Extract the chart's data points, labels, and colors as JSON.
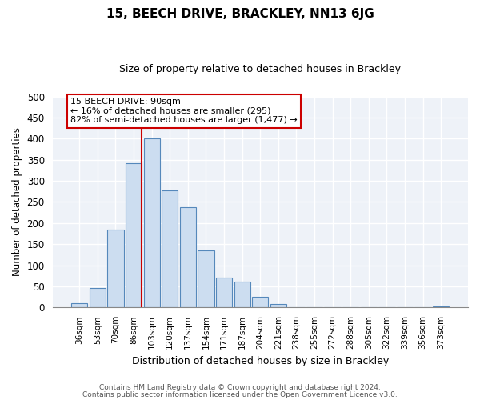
{
  "title": "15, BEECH DRIVE, BRACKLEY, NN13 6JG",
  "subtitle": "Size of property relative to detached houses in Brackley",
  "xlabel": "Distribution of detached houses by size in Brackley",
  "ylabel": "Number of detached properties",
  "bar_labels": [
    "36sqm",
    "53sqm",
    "70sqm",
    "86sqm",
    "103sqm",
    "120sqm",
    "137sqm",
    "154sqm",
    "171sqm",
    "187sqm",
    "204sqm",
    "221sqm",
    "238sqm",
    "255sqm",
    "272sqm",
    "288sqm",
    "305sqm",
    "322sqm",
    "339sqm",
    "356sqm",
    "373sqm"
  ],
  "bar_values": [
    10,
    47,
    185,
    342,
    400,
    278,
    238,
    135,
    70,
    62,
    26,
    8,
    0,
    0,
    0,
    0,
    0,
    0,
    0,
    0,
    2
  ],
  "bar_color": "#ccddf0",
  "bar_edge_color": "#5588bb",
  "property_line_color": "#cc0000",
  "annotation_text_line1": "15 BEECH DRIVE: 90sqm",
  "annotation_text_line2": "← 16% of detached houses are smaller (295)",
  "annotation_text_line3": "82% of semi-detached houses are larger (1,477) →",
  "annotation_box_color": "#cc0000",
  "ylim": [
    0,
    500
  ],
  "yticks": [
    0,
    50,
    100,
    150,
    200,
    250,
    300,
    350,
    400,
    450,
    500
  ],
  "footnote1": "Contains HM Land Registry data © Crown copyright and database right 2024.",
  "footnote2": "Contains public sector information licensed under the Open Government Licence v3.0.",
  "bg_color": "#eef2f8",
  "fig_bg_color": "#ffffff",
  "grid_color": "#ffffff"
}
